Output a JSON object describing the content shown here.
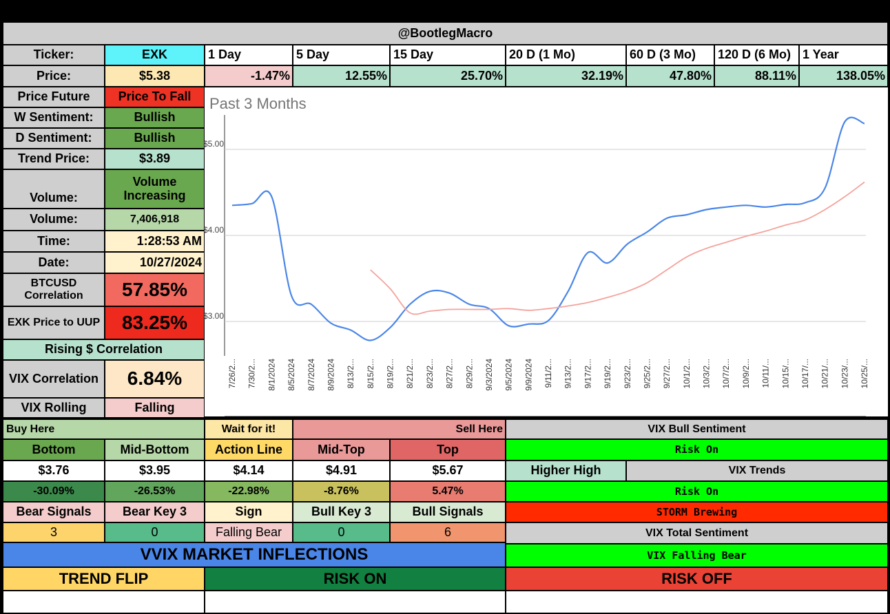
{
  "header": {
    "title": "@BootlegMacro"
  },
  "ticker": {
    "label": "Ticker:",
    "symbol": "EXK",
    "periods": [
      "1 Day",
      "5 Day",
      "15 Day",
      "20 D (1 Mo)",
      "60 D (3 Mo)",
      "120 D (6 Mo)",
      "1 Year"
    ]
  },
  "price": {
    "label": "Price:",
    "value": "$5.38",
    "changes": [
      "-1.47%",
      "12.55%",
      "25.70%",
      "32.19%",
      "47.80%",
      "88.11%",
      "138.05%"
    ]
  },
  "metrics": {
    "price_future_label": "Price Future",
    "price_future_value": "Price To Fall",
    "w_sentiment_label": "W Sentiment:",
    "w_sentiment_value": "Bullish",
    "d_sentiment_label": "D Sentiment:",
    "d_sentiment_value": "Bullish",
    "trend_price_label": "Trend Price:",
    "trend_price_value": "$3.89",
    "volume_trend_label": "Volume:",
    "volume_trend_value": "Volume Increasing",
    "volume_label": "Volume:",
    "volume_value": "7,406,918",
    "time_label": "Time:",
    "time_value": "1:28:53 AM",
    "date_label": "Date:",
    "date_value": "10/27/2024",
    "btc_corr_label": "BTCUSD Correlation",
    "btc_corr_value": "57.85%",
    "uup_corr_label": "EXK Price to UUP",
    "uup_corr_value": "83.25%",
    "rising_label": "Rising $ Correlation",
    "vix_corr_label": "VIX Correlation",
    "vix_corr_value": "6.84%",
    "vix_rolling_label": "VIX Rolling",
    "vix_rolling_value": "Falling"
  },
  "levels": {
    "buy_here": "Buy Here",
    "wait": "Wait for it!",
    "sell_here": "Sell Here",
    "names": [
      "Bottom",
      "Mid-Bottom",
      "Action Line",
      "Mid-Top",
      "Top"
    ],
    "prices": [
      "$3.76",
      "$3.95",
      "$4.14",
      "$4.91",
      "$5.67"
    ],
    "pcts": [
      "-30.09%",
      "-26.53%",
      "-22.98%",
      "-8.76%",
      "5.47%"
    ],
    "signal_names": [
      "Bear Signals",
      "Bear Key 3",
      "Sign",
      "Bull Key 3",
      "Bull Signals"
    ],
    "signal_values": [
      "3",
      "0",
      "Falling Bear",
      "0",
      "6"
    ]
  },
  "vix": {
    "bull_sentiment_label": "VIX Bull Sentiment",
    "bull_sentiment_value": "Risk On",
    "higher_high": "Higher High",
    "trends_label": "VIX Trends",
    "trends_value": "Risk On",
    "storm": "STORM Brewing",
    "total_label": "VIX Total Sentiment",
    "total_value": "VIX Falling Bear"
  },
  "vvix": {
    "title": "VVIX MARKET INFLECTIONS",
    "trend_flip": "TREND FLIP",
    "risk_on": "RISK ON",
    "risk_off": "RISK OFF"
  },
  "colors": {
    "cyan": "#5ef3fb",
    "price_bg": "#fde7b2",
    "red_pos": "#f4cccc",
    "green_pos": "#b6e1cd",
    "bright_red": "#ee3224",
    "sentiment_green": "#6aa84f",
    "bright_green": "#00ff00",
    "storm_red": "#ff2a00",
    "vvix_blue": "#4a86e8",
    "trend_flip": "#ffd666",
    "risk_on": "#118040",
    "risk_off": "#ea4335",
    "price_line": "#4a86e8",
    "trend_line": "#f4a29b"
  },
  "chart_data": {
    "type": "line",
    "title": "Past 3 Months",
    "y_tick_labels": [
      "$5.00",
      "$4.00",
      "$3.00"
    ],
    "ylim": [
      2.6,
      5.4
    ],
    "x_tick_labels": [
      "7/26/2...",
      "7/30/2...",
      "8/1/2024",
      "8/5/2024",
      "8/7/2024",
      "8/9/2024",
      "8/13/2...",
      "8/15/2...",
      "8/19/2...",
      "8/21/2...",
      "8/23/2...",
      "8/27/2...",
      "8/29/2...",
      "9/3/2024",
      "9/5/2024",
      "9/9/2024",
      "9/11/2...",
      "9/13/2...",
      "9/17/2...",
      "9/19/2...",
      "9/23/2...",
      "9/25/2...",
      "9/27/2...",
      "10/1/2...",
      "10/3/2...",
      "10/7/2...",
      "10/9/2...",
      "10/11/...",
      "10/15/...",
      "10/17/...",
      "10/21/...",
      "10/23/...",
      "10/25/..."
    ],
    "grid": true,
    "series": [
      {
        "values": [
          4.35,
          4.37,
          4.45,
          3.3,
          3.2,
          2.98,
          2.9,
          2.78,
          2.93,
          3.2,
          3.35,
          3.33,
          3.2,
          3.15,
          2.95,
          2.97,
          3.01,
          3.35,
          3.8,
          3.68,
          3.9,
          4.04,
          4.2,
          4.24,
          4.3,
          4.33,
          4.35,
          4.33,
          4.36,
          4.38,
          4.55,
          5.32,
          5.3
        ]
      },
      {
        "values": [
          null,
          null,
          null,
          null,
          null,
          null,
          null,
          3.6,
          3.38,
          3.1,
          3.12,
          3.14,
          3.14,
          3.14,
          3.15,
          3.13,
          3.15,
          3.18,
          3.22,
          3.28,
          3.35,
          3.45,
          3.6,
          3.75,
          3.85,
          3.92,
          3.99,
          4.05,
          4.12,
          4.18,
          4.3,
          4.45,
          4.62
        ]
      }
    ]
  }
}
